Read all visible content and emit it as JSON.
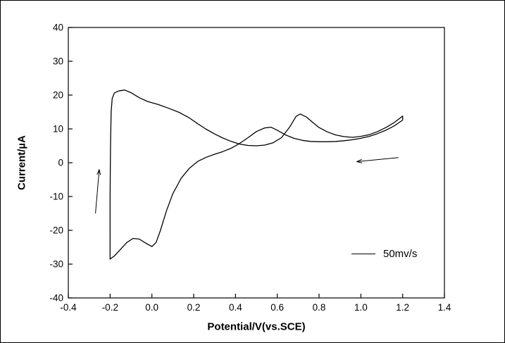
{
  "chart_data": {
    "type": "line",
    "title": "",
    "xlabel": "Potential/V(vs.SCE)",
    "ylabel": "Current/µA",
    "xlim": [
      -0.4,
      1.4
    ],
    "ylim": [
      -40,
      40
    ],
    "grid": false,
    "line_color": "#000000",
    "background_color": "#ffffff",
    "legend_label": "50mv/s",
    "legend_position": "lower-right",
    "x_ticks": [
      -0.4,
      -0.2,
      0.0,
      0.2,
      0.4,
      0.6,
      0.8,
      1.0,
      1.2,
      1.4
    ],
    "x_tick_labels": [
      "-0.4",
      "-0.2",
      "0.0",
      "0.2",
      "0.4",
      "0.6",
      "0.8",
      "1.0",
      "1.2",
      "1.4"
    ],
    "y_ticks": [
      -40,
      -30,
      -20,
      -10,
      0,
      10,
      20,
      30,
      40
    ],
    "y_tick_labels": [
      "-40",
      "-30",
      "-20",
      "-10",
      "0",
      "10",
      "20",
      "30",
      "40"
    ],
    "series": [
      {
        "name": "50mv/s",
        "description": "cyclic voltammogram loop, forward then reverse scan",
        "points": [
          [
            -0.2,
            -28.5
          ],
          [
            -0.2,
            -10.0
          ],
          [
            -0.198,
            5.0
          ],
          [
            -0.195,
            15.0
          ],
          [
            -0.19,
            19.0
          ],
          [
            -0.18,
            20.6
          ],
          [
            -0.16,
            21.2
          ],
          [
            -0.13,
            21.5
          ],
          [
            -0.1,
            20.7
          ],
          [
            -0.06,
            19.2
          ],
          [
            -0.02,
            18.1
          ],
          [
            0.03,
            17.2
          ],
          [
            0.08,
            16.1
          ],
          [
            0.13,
            14.9
          ],
          [
            0.18,
            13.2
          ],
          [
            0.22,
            11.5
          ],
          [
            0.26,
            9.9
          ],
          [
            0.3,
            8.5
          ],
          [
            0.34,
            7.3
          ],
          [
            0.38,
            6.3
          ],
          [
            0.42,
            5.5
          ],
          [
            0.46,
            5.1
          ],
          [
            0.5,
            5.0
          ],
          [
            0.54,
            5.2
          ],
          [
            0.58,
            5.9
          ],
          [
            0.62,
            7.4
          ],
          [
            0.66,
            10.6
          ],
          [
            0.69,
            13.7
          ],
          [
            0.71,
            14.4
          ],
          [
            0.74,
            13.5
          ],
          [
            0.77,
            11.9
          ],
          [
            0.8,
            10.4
          ],
          [
            0.84,
            9.1
          ],
          [
            0.88,
            8.2
          ],
          [
            0.92,
            7.7
          ],
          [
            0.96,
            7.5
          ],
          [
            1.0,
            7.8
          ],
          [
            1.04,
            8.3
          ],
          [
            1.08,
            9.2
          ],
          [
            1.12,
            10.4
          ],
          [
            1.16,
            11.9
          ],
          [
            1.2,
            13.8
          ],
          [
            1.2,
            12.6
          ],
          [
            1.16,
            10.9
          ],
          [
            1.12,
            9.6
          ],
          [
            1.08,
            8.6
          ],
          [
            1.04,
            7.8
          ],
          [
            1.0,
            7.2
          ],
          [
            0.96,
            6.8
          ],
          [
            0.92,
            6.5
          ],
          [
            0.88,
            6.3
          ],
          [
            0.84,
            6.2
          ],
          [
            0.8,
            6.2
          ],
          [
            0.76,
            6.3
          ],
          [
            0.72,
            6.6
          ],
          [
            0.68,
            7.2
          ],
          [
            0.64,
            8.2
          ],
          [
            0.6,
            9.6
          ],
          [
            0.57,
            10.5
          ],
          [
            0.54,
            10.3
          ],
          [
            0.5,
            9.2
          ],
          [
            0.46,
            7.4
          ],
          [
            0.42,
            5.7
          ],
          [
            0.38,
            4.3
          ],
          [
            0.34,
            3.3
          ],
          [
            0.3,
            2.5
          ],
          [
            0.26,
            1.6
          ],
          [
            0.22,
            0.4
          ],
          [
            0.18,
            -1.6
          ],
          [
            0.14,
            -4.6
          ],
          [
            0.1,
            -9.2
          ],
          [
            0.07,
            -14.2
          ],
          [
            0.04,
            -20.2
          ],
          [
            0.02,
            -23.6
          ],
          [
            0.0,
            -24.8
          ],
          [
            -0.03,
            -23.8
          ],
          [
            -0.06,
            -22.6
          ],
          [
            -0.09,
            -22.4
          ],
          [
            -0.12,
            -23.6
          ],
          [
            -0.15,
            -25.6
          ],
          [
            -0.18,
            -27.6
          ],
          [
            -0.2,
            -28.5
          ]
        ]
      }
    ],
    "annotations": {
      "arrows": [
        {
          "name": "scan-direction-up-arrow",
          "from": [
            -0.27,
            -15.0
          ],
          "to": [
            -0.252,
            -2.0
          ]
        },
        {
          "name": "scan-direction-left-arrow",
          "from": [
            1.18,
            1.5
          ],
          "to": [
            0.98,
            0.3
          ]
        }
      ]
    }
  }
}
